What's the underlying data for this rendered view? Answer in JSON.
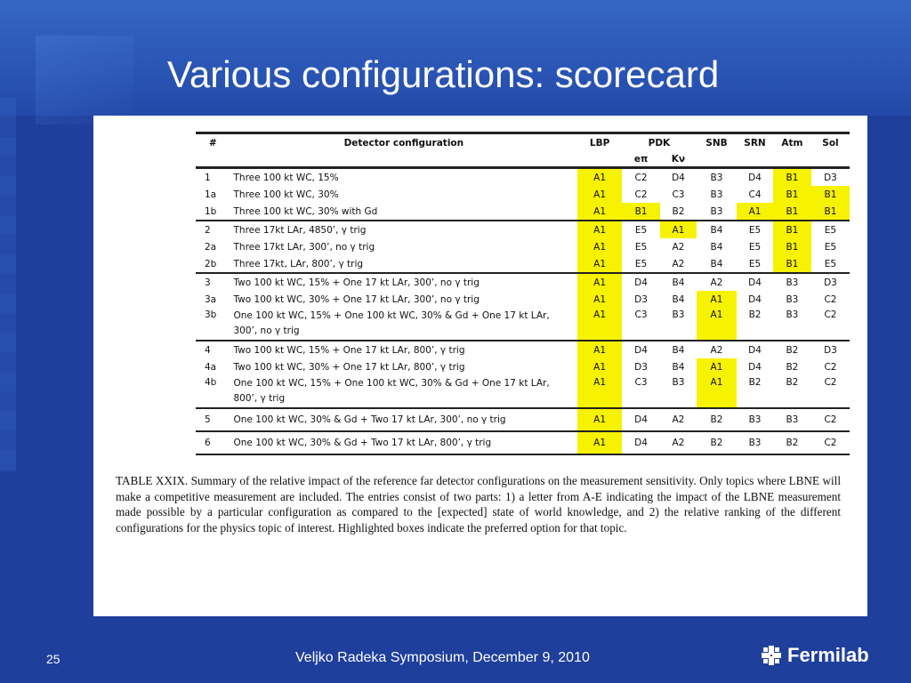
{
  "slide": {
    "title": "Various configurations: scorecard",
    "page_number": "25",
    "footer": "Veljko Radeka Symposium, December 9,  2010",
    "logo_text": "Fermilab"
  },
  "colors": {
    "background": "#1f3f9c",
    "highlight": "#f6f200"
  },
  "table": {
    "headers": [
      "#",
      "Detector configuration",
      "LBP",
      "PDK",
      "SNB",
      "SRN",
      "Atm",
      "Sol"
    ],
    "pdk_sub": [
      "eπ",
      "Kν"
    ],
    "rows": [
      {
        "id": "1",
        "config": "Three 100 kt WC, 15%",
        "lbp": "A1",
        "pdk_e": "C2",
        "pdk_k": "D4",
        "snb": "B3",
        "srn": "D4",
        "atm": "B1",
        "sol": "D3"
      },
      {
        "id": "1a",
        "config": "Three 100 kt WC, 30%",
        "lbp": "A1",
        "pdk_e": "C2",
        "pdk_k": "C3",
        "snb": "B3",
        "srn": "C4",
        "atm": "B1",
        "sol": "B1"
      },
      {
        "id": "1b",
        "config": "Three 100 kt WC, 30% with Gd",
        "lbp": "A1",
        "pdk_e": "B1",
        "pdk_k": "B2",
        "snb": "B3",
        "srn": "A1",
        "atm": "B1",
        "sol": "B1"
      },
      {
        "id": "2",
        "config": "Three 17kt LAr, 4850’, γ trig",
        "lbp": "A1",
        "pdk_e": "E5",
        "pdk_k": "A1",
        "snb": "B4",
        "srn": "E5",
        "atm": "B1",
        "sol": "E5"
      },
      {
        "id": "2a",
        "config": "Three 17kt LAr, 300’, no γ trig",
        "lbp": "A1",
        "pdk_e": "E5",
        "pdk_k": "A2",
        "snb": "B4",
        "srn": "E5",
        "atm": "B1",
        "sol": "E5"
      },
      {
        "id": "2b",
        "config": "Three 17kt, LAr, 800’, γ trig",
        "lbp": "A1",
        "pdk_e": "E5",
        "pdk_k": "A2",
        "snb": "B4",
        "srn": "E5",
        "atm": "B1",
        "sol": "E5"
      },
      {
        "id": "3",
        "config": "Two 100 kt WC, 15% + One 17 kt LAr, 300’, no  γ trig",
        "lbp": "A1",
        "pdk_e": "D4",
        "pdk_k": "B4",
        "snb": "A2",
        "srn": "D4",
        "atm": "B3",
        "sol": "D3"
      },
      {
        "id": "3a",
        "config": "Two 100 kt WC, 30%  + One 17 kt LAr, 300’, no γ trig",
        "lbp": "A1",
        "pdk_e": "D3",
        "pdk_k": "B4",
        "snb": "A1",
        "srn": "D4",
        "atm": "B3",
        "sol": "C2"
      },
      {
        "id": "3b",
        "config": "One  100 kt WC, 15% + One  100 kt WC, 30% & Gd  + One 17 kt LAr, 300’, no γ trig",
        "lbp": "A1",
        "pdk_e": "C3",
        "pdk_k": "B3",
        "snb": "A1",
        "srn": "B2",
        "atm": "B3",
        "sol": "C2"
      },
      {
        "id": "4",
        "config": "Two 100 kt WC, 15% + One 17 kt LAr, 800’, γ trig",
        "lbp": "A1",
        "pdk_e": "D4",
        "pdk_k": "B4",
        "snb": "A2",
        "srn": "D4",
        "atm": "B2",
        "sol": "D3"
      },
      {
        "id": "4a",
        "config": "Two  100 kt WC, 30%  + One 17 kt LAr, 800’, γ trig",
        "lbp": "A1",
        "pdk_e": "D3",
        "pdk_k": "B4",
        "snb": "A1",
        "srn": "D4",
        "atm": "B2",
        "sol": "C2"
      },
      {
        "id": "4b",
        "config": "One  100 kt WC, 15% + One  100 kt WC, 30% & Gd  + One 17 kt LAr, 800’, γ trig",
        "lbp": "A1",
        "pdk_e": "C3",
        "pdk_k": "B3",
        "snb": "A1",
        "srn": "B2",
        "atm": "B2",
        "sol": "C2"
      },
      {
        "id": "5",
        "config": "One 100 kt WC, 30% & Gd + Two 17 kt LAr, 300’, no γ trig",
        "lbp": "A1",
        "pdk_e": "D4",
        "pdk_k": "A2",
        "snb": "B2",
        "srn": "B3",
        "atm": "B3",
        "sol": "C2"
      },
      {
        "id": "6",
        "config": "One 100 kt WC, 30% & Gd + Two 17 kt LAr, 800’, γ trig",
        "lbp": "A1",
        "pdk_e": "D4",
        "pdk_k": "A2",
        "snb": "B2",
        "srn": "B3",
        "atm": "B2",
        "sol": "C2"
      }
    ]
  },
  "caption": "TABLE XXIX. Summary of the relative impact of the reference far detector configurations on the measurement sensitivity. Only topics where LBNE will make a competitive measurement are included.  The entries consist of two parts:  1) a letter from A-E indicating the impact of the LBNE measurement made possible by a particular configuration as compared to the [expected] state of world knowledge, and 2) the relative ranking of the different configurations for the physics topic of interest. Highlighted boxes indicate the preferred option for that topic."
}
